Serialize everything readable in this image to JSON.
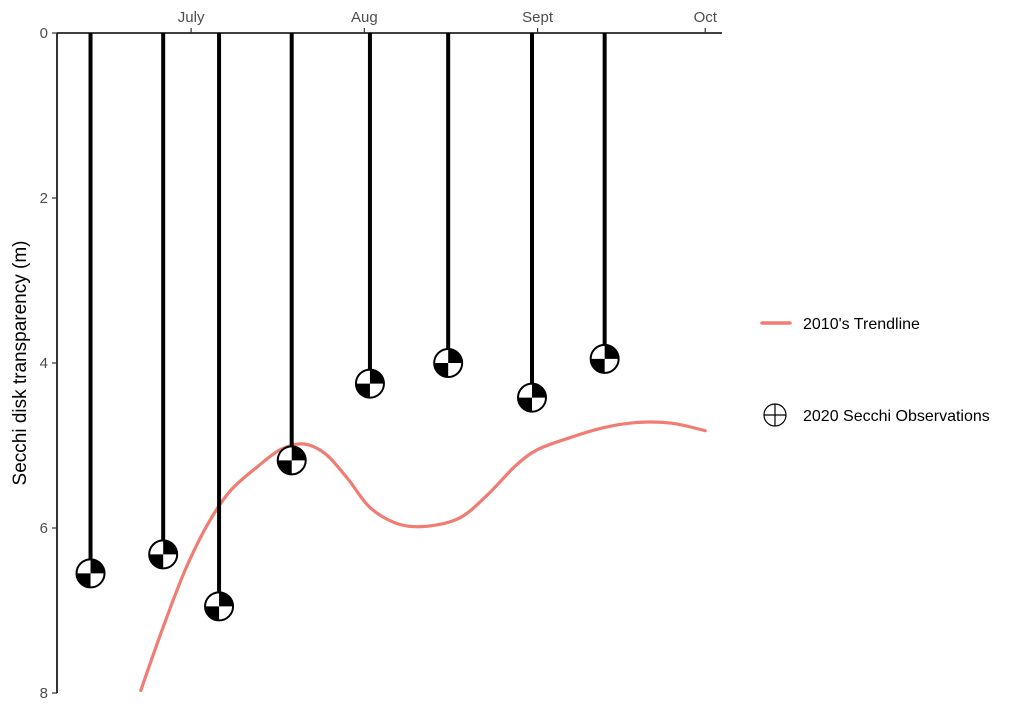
{
  "chart_data": {
    "type": "line",
    "xlabel": "",
    "ylabel": "Secchi disk transparency (m)",
    "y_reversed": true,
    "ylim": [
      0,
      8
    ],
    "y_ticks": [
      0,
      2,
      4,
      6,
      8
    ],
    "x_axis_position": "top",
    "xlim": [
      "2020-06-07",
      "2020-10-04"
    ],
    "x_ticks": [
      {
        "date": "2020-07-01",
        "label": "July"
      },
      {
        "date": "2020-08-01",
        "label": "Aug"
      },
      {
        "date": "2020-09-01",
        "label": "Sept"
      },
      {
        "date": "2020-10-01",
        "label": "Oct"
      }
    ],
    "grid": false,
    "legend_position": "right",
    "series": [
      {
        "name": "2010's Trendline",
        "kind": "line",
        "color": "#f07c73",
        "points": [
          {
            "x": "2020-06-22",
            "y": 7.97
          },
          {
            "x": "2020-06-26",
            "y": 7.2
          },
          {
            "x": "2020-06-30",
            "y": 6.5
          },
          {
            "x": "2020-07-04",
            "y": 5.95
          },
          {
            "x": "2020-07-08",
            "y": 5.55
          },
          {
            "x": "2020-07-13",
            "y": 5.25
          },
          {
            "x": "2020-07-17",
            "y": 5.05
          },
          {
            "x": "2020-07-21",
            "y": 4.98
          },
          {
            "x": "2020-07-25",
            "y": 5.1
          },
          {
            "x": "2020-07-29",
            "y": 5.4
          },
          {
            "x": "2020-08-02",
            "y": 5.75
          },
          {
            "x": "2020-08-07",
            "y": 5.95
          },
          {
            "x": "2020-08-12",
            "y": 5.98
          },
          {
            "x": "2020-08-18",
            "y": 5.88
          },
          {
            "x": "2020-08-23",
            "y": 5.6
          },
          {
            "x": "2020-08-28",
            "y": 5.25
          },
          {
            "x": "2020-09-01",
            "y": 5.05
          },
          {
            "x": "2020-09-07",
            "y": 4.9
          },
          {
            "x": "2020-09-13",
            "y": 4.78
          },
          {
            "x": "2020-09-19",
            "y": 4.72
          },
          {
            "x": "2020-09-25",
            "y": 4.73
          },
          {
            "x": "2020-10-01",
            "y": 4.82
          }
        ]
      },
      {
        "name": "2020 Secchi Observations",
        "kind": "secchi-disk",
        "color": "#000000",
        "points": [
          {
            "x": "2020-06-13",
            "y": 6.55
          },
          {
            "x": "2020-06-26",
            "y": 6.32
          },
          {
            "x": "2020-07-06",
            "y": 6.95
          },
          {
            "x": "2020-07-19",
            "y": 5.18
          },
          {
            "x": "2020-08-02",
            "y": 4.25
          },
          {
            "x": "2020-08-16",
            "y": 4.0
          },
          {
            "x": "2020-08-31",
            "y": 4.42
          },
          {
            "x": "2020-09-13",
            "y": 3.95
          }
        ]
      }
    ]
  }
}
